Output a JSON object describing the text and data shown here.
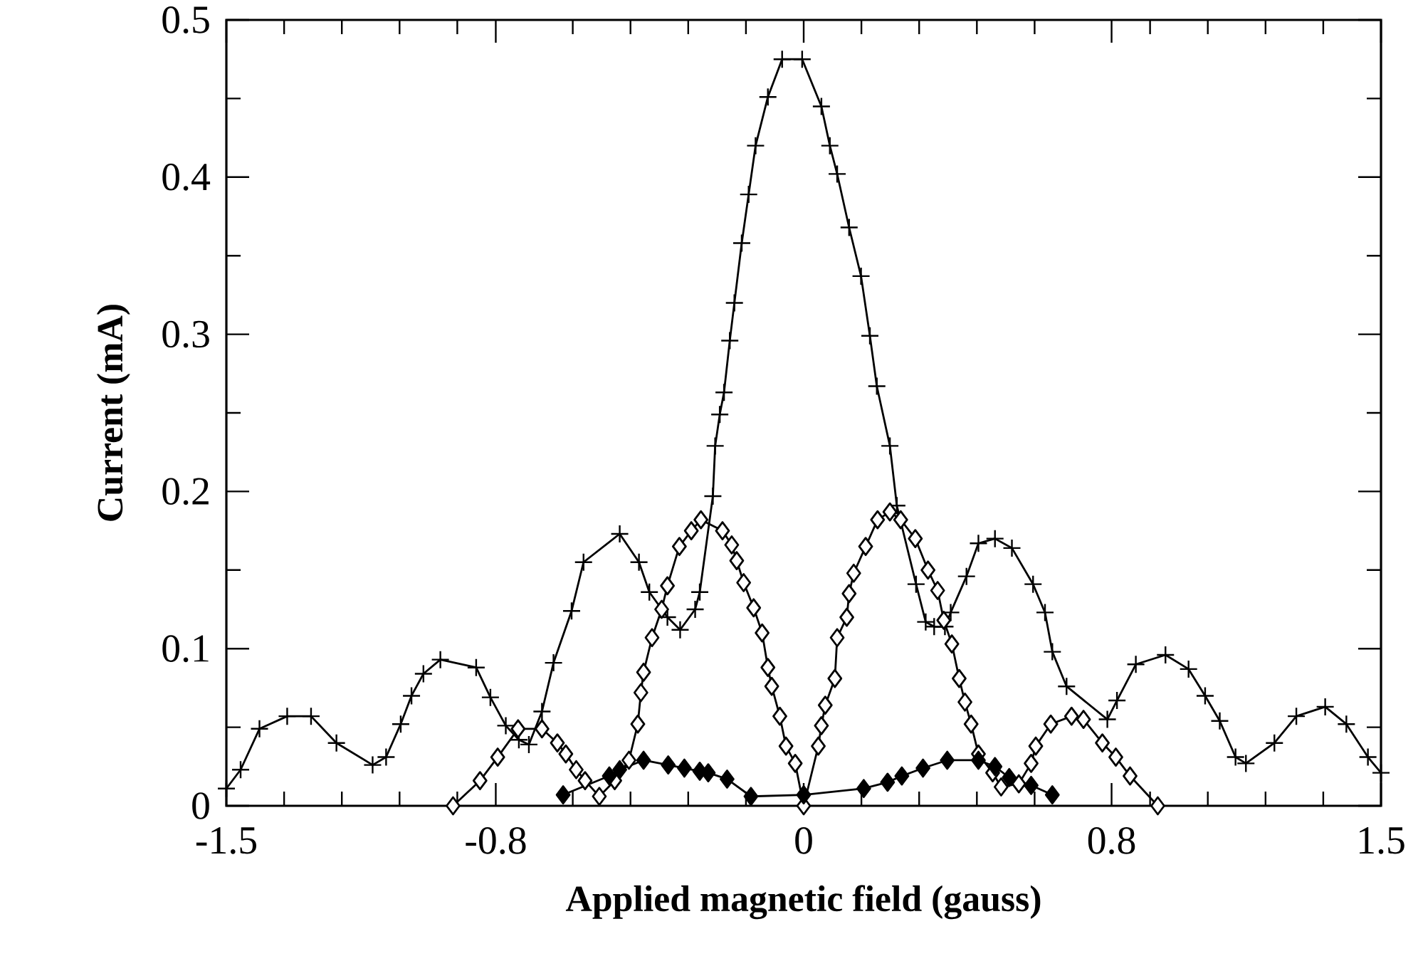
{
  "chart_data": {
    "type": "line",
    "xlabel": "Applied magnetic field (gauss)",
    "ylabel": "Current (mA)",
    "xlim": [
      -1.5,
      1.5
    ],
    "ylim": [
      0,
      0.5
    ],
    "xticks": [
      -1.5,
      {
        "value": -1.35,
        "label": null
      },
      {
        "value": -1.2,
        "label": null
      },
      {
        "value": -1.05,
        "label": null
      },
      {
        "value": -0.9,
        "label": null
      },
      -0.8,
      {
        "value": -0.6,
        "label": null
      },
      {
        "value": -0.45,
        "label": null
      },
      {
        "value": -0.3,
        "label": null
      },
      {
        "value": -0.15,
        "label": null
      },
      0,
      {
        "value": 0.15,
        "label": null
      },
      {
        "value": 0.3,
        "label": null
      },
      {
        "value": 0.45,
        "label": null
      },
      {
        "value": 0.6,
        "label": null
      },
      0.8,
      {
        "value": 0.9,
        "label": null
      },
      {
        "value": 1.05,
        "label": null
      },
      {
        "value": 1.2,
        "label": null
      },
      {
        "value": 1.35,
        "label": null
      },
      1.5
    ],
    "yticks": [
      0,
      {
        "value": 0.05,
        "label": null
      },
      0.1,
      {
        "value": 0.15,
        "label": null
      },
      0.2,
      {
        "value": 0.25,
        "label": null
      },
      0.3,
      {
        "value": 0.35,
        "label": null
      },
      0.4,
      {
        "value": 0.45,
        "label": null
      },
      0.5
    ],
    "series": [
      {
        "color": "#000000",
        "marker": "cross",
        "x": [
          -1.5,
          -1.463,
          -1.414,
          -1.342,
          -1.28,
          -1.214,
          -1.12,
          -1.085,
          -1.047,
          -1.019,
          -0.988,
          -0.944,
          -0.851,
          -0.814,
          -0.774,
          -0.74,
          -0.714,
          -0.68,
          -0.65,
          -0.603,
          -0.572,
          -0.478,
          -0.428,
          -0.401,
          -0.354,
          -0.321,
          -0.282,
          -0.27,
          -0.236,
          -0.23,
          -0.218,
          -0.207,
          -0.192,
          -0.18,
          -0.161,
          -0.143,
          -0.125,
          -0.093,
          -0.056,
          -0.004,
          0.046,
          0.068,
          0.087,
          0.118,
          0.149,
          0.172,
          0.19,
          0.224,
          0.242,
          0.292,
          0.317,
          0.339,
          0.367,
          0.382,
          0.423,
          0.454,
          0.497,
          0.541,
          0.596,
          0.627,
          0.646,
          0.683,
          0.789,
          0.814,
          0.863,
          0.94,
          1.0,
          1.043,
          1.081,
          1.122,
          1.149,
          1.223,
          1.28,
          1.355,
          1.41,
          1.466,
          1.5
        ],
        "values": [
          0.011,
          0.023,
          0.049,
          0.057,
          0.057,
          0.04,
          0.026,
          0.031,
          0.052,
          0.07,
          0.084,
          0.093,
          0.088,
          0.069,
          0.051,
          0.042,
          0.039,
          0.06,
          0.091,
          0.124,
          0.155,
          0.173,
          0.155,
          0.136,
          0.12,
          0.112,
          0.125,
          0.136,
          0.197,
          0.229,
          0.249,
          0.263,
          0.296,
          0.32,
          0.358,
          0.389,
          0.42,
          0.451,
          0.475,
          0.475,
          0.445,
          0.42,
          0.402,
          0.368,
          0.337,
          0.299,
          0.267,
          0.229,
          0.191,
          0.141,
          0.117,
          0.114,
          0.114,
          0.123,
          0.146,
          0.167,
          0.17,
          0.164,
          0.141,
          0.123,
          0.098,
          0.076,
          0.055,
          0.067,
          0.09,
          0.096,
          0.087,
          0.07,
          0.054,
          0.031,
          0.027,
          0.04,
          0.057,
          0.063,
          0.052,
          0.031,
          0.021
        ]
      },
      {
        "color": "#000000",
        "marker": "diamond",
        "x": [
          -0.911,
          -0.841,
          -0.795,
          -0.742,
          -0.68,
          -0.64,
          -0.618,
          -0.591,
          -0.568,
          -0.531,
          -0.491,
          -0.454,
          -0.431,
          -0.423,
          -0.416,
          -0.394,
          -0.369,
          -0.354,
          -0.323,
          -0.292,
          -0.267,
          -0.211,
          -0.187,
          -0.174,
          -0.156,
          -0.13,
          -0.108,
          -0.093,
          -0.083,
          -0.062,
          -0.046,
          -0.022,
          0.0,
          0.038,
          0.046,
          0.056,
          0.081,
          0.087,
          0.112,
          0.118,
          0.13,
          0.161,
          0.192,
          0.224,
          0.252,
          0.29,
          0.323,
          0.348,
          0.364,
          0.385,
          0.404,
          0.419,
          0.435,
          0.454,
          0.491,
          0.513,
          0.559,
          0.591,
          0.603,
          0.642,
          0.696,
          0.727,
          0.776,
          0.811,
          0.848,
          0.92
        ],
        "values": [
          0.0,
          0.016,
          0.031,
          0.049,
          0.049,
          0.04,
          0.033,
          0.023,
          0.016,
          0.006,
          0.016,
          0.029,
          0.052,
          0.072,
          0.085,
          0.107,
          0.125,
          0.14,
          0.165,
          0.175,
          0.182,
          0.175,
          0.166,
          0.156,
          0.142,
          0.126,
          0.11,
          0.088,
          0.076,
          0.057,
          0.038,
          0.027,
          0.0,
          0.038,
          0.051,
          0.064,
          0.081,
          0.107,
          0.12,
          0.135,
          0.148,
          0.165,
          0.182,
          0.187,
          0.182,
          0.17,
          0.15,
          0.137,
          0.118,
          0.103,
          0.081,
          0.066,
          0.052,
          0.033,
          0.021,
          0.012,
          0.014,
          0.027,
          0.038,
          0.052,
          0.057,
          0.055,
          0.04,
          0.031,
          0.019,
          0.0
        ]
      },
      {
        "color": "#000000",
        "marker": "diamond",
        "x": [
          -0.625,
          -0.505,
          -0.478,
          -0.416,
          -0.352,
          -0.31,
          -0.27,
          -0.248,
          -0.199,
          -0.137,
          0.0,
          0.156,
          0.218,
          0.255,
          0.31,
          0.373,
          0.454,
          0.497,
          0.534,
          0.591,
          0.646
        ],
        "values": [
          0.007,
          0.019,
          0.023,
          0.029,
          0.026,
          0.024,
          0.022,
          0.021,
          0.017,
          0.006,
          0.007,
          0.011,
          0.015,
          0.019,
          0.024,
          0.029,
          0.029,
          0.025,
          0.018,
          0.013,
          0.007
        ]
      }
    ]
  }
}
